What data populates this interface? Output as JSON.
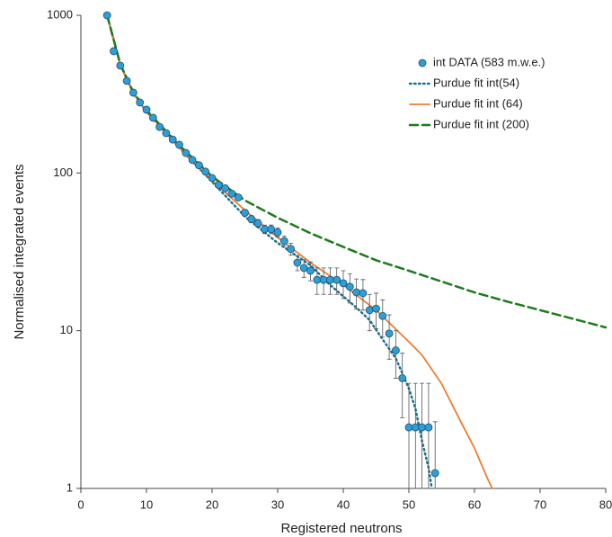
{
  "chart_data": {
    "type": "scatter",
    "xlabel": "Registered neutrons",
    "ylabel": "Normalised integrated events",
    "xlim": [
      0,
      80
    ],
    "xticks": [
      0,
      10,
      20,
      30,
      40,
      50,
      60,
      70,
      80
    ],
    "ylim": [
      1,
      1000
    ],
    "yticks": [
      1,
      10,
      100,
      1000
    ],
    "log_y": true,
    "grid": false,
    "legend": "upper right",
    "series": [
      {
        "name": "int DATA (583 m.w.e.)",
        "kind": "points",
        "color": "#2e9fd6",
        "x": [
          4,
          5,
          6,
          7,
          8,
          9,
          10,
          11,
          12,
          13,
          14,
          15,
          16,
          17,
          18,
          19,
          20,
          21,
          22,
          23,
          24,
          25,
          26,
          27,
          28,
          29,
          30,
          31,
          32,
          33,
          34,
          35,
          36,
          37,
          38,
          39,
          40,
          41,
          42,
          43,
          44,
          45,
          46,
          47,
          48,
          49,
          50,
          51,
          52,
          53,
          54
        ],
        "values": [
          1000,
          592,
          480,
          384,
          323,
          280,
          252,
          224,
          196,
          179,
          163,
          151,
          134,
          121,
          112,
          102,
          93,
          84,
          80,
          74,
          70,
          56,
          51,
          48,
          44,
          44,
          42,
          37,
          33,
          27,
          25,
          24,
          21,
          21,
          21,
          21,
          20,
          19,
          17.5,
          17.3,
          13.5,
          13.8,
          12.4,
          9.6,
          7.5,
          5.0,
          2.44,
          2.44,
          2.44,
          2.44,
          1.25
        ],
        "errors": [
          10,
          8,
          7,
          6,
          6,
          5,
          5,
          5,
          4,
          4,
          4,
          4,
          3.5,
          3.5,
          3.3,
          3.2,
          3,
          3,
          3,
          2.9,
          2.8,
          2.7,
          2.7,
          2.7,
          2.7,
          2.8,
          2.8,
          2.8,
          2.9,
          3,
          3.2,
          3.3,
          4,
          4,
          4,
          4,
          4,
          4,
          3.8,
          3.8,
          3.5,
          3.5,
          3.3,
          3,
          2.5,
          2.2,
          2.2,
          2.2,
          2.2,
          2.2,
          1.4
        ]
      },
      {
        "name": "Purdue fit int(54)",
        "kind": "dotted",
        "color": "#1f6f8b",
        "x": [
          4,
          6,
          8,
          10,
          15,
          20,
          25,
          30,
          35,
          38,
          40,
          42,
          44,
          46,
          48,
          50,
          51,
          52,
          53,
          53.5
        ],
        "values": [
          1000,
          490,
          320,
          245,
          145,
          88,
          53,
          36,
          26,
          19.5,
          16.5,
          14,
          11.7,
          8.8,
          6.7,
          4.3,
          3.2,
          2.0,
          1.35,
          1.0
        ]
      },
      {
        "name": "Purdue fit int (64)",
        "kind": "solid",
        "color": "#ed7d31",
        "x": [
          4,
          6,
          8,
          10,
          15,
          20,
          25,
          30,
          35,
          40,
          45,
          50,
          52,
          55,
          58,
          60,
          62,
          62.7
        ],
        "values": [
          1000,
          480,
          320,
          245,
          145,
          90,
          58,
          39,
          27,
          19.5,
          13.5,
          8.5,
          7.0,
          4.6,
          2.6,
          1.8,
          1.15,
          1.0
        ]
      },
      {
        "name": "Purdue fit int (200)",
        "kind": "dashed",
        "color": "#1e7a1e",
        "x": [
          4,
          6,
          8,
          10,
          15,
          20,
          25,
          30,
          35,
          40,
          45,
          50,
          55,
          60,
          65,
          70,
          75,
          80
        ],
        "values": [
          1000,
          490,
          325,
          250,
          150,
          95,
          67,
          52,
          41.5,
          34,
          28,
          24,
          20.5,
          17.5,
          15.3,
          13.5,
          11.9,
          10.5
        ]
      }
    ]
  }
}
